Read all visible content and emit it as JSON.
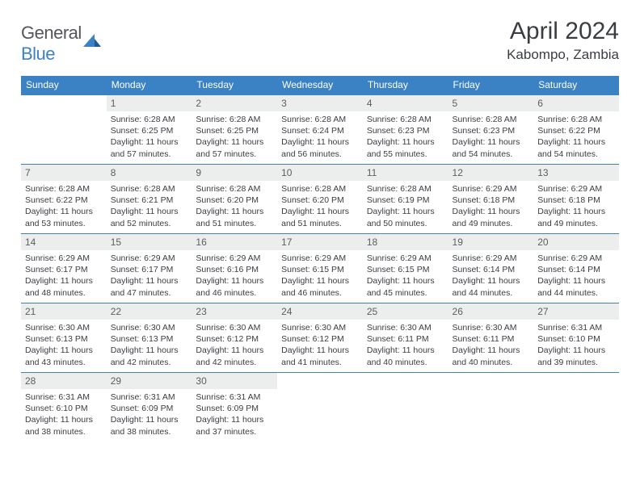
{
  "brand": {
    "part1": "General",
    "part2": "Blue"
  },
  "title": "April 2024",
  "location": "Kabompo, Zambia",
  "colors": {
    "brand_blue": "#3b82c4",
    "text_dark": "#3a3d42",
    "text_gray": "#54565a",
    "daynum_bg": "#eceded",
    "white": "#ffffff"
  },
  "calendar": {
    "day_headers": [
      "Sunday",
      "Monday",
      "Tuesday",
      "Wednesday",
      "Thursday",
      "Friday",
      "Saturday"
    ],
    "weeks": [
      [
        {
          "n": "",
          "sr": "",
          "ss": "",
          "dl": ""
        },
        {
          "n": "1",
          "sr": "Sunrise: 6:28 AM",
          "ss": "Sunset: 6:25 PM",
          "dl": "Daylight: 11 hours and 57 minutes."
        },
        {
          "n": "2",
          "sr": "Sunrise: 6:28 AM",
          "ss": "Sunset: 6:25 PM",
          "dl": "Daylight: 11 hours and 57 minutes."
        },
        {
          "n": "3",
          "sr": "Sunrise: 6:28 AM",
          "ss": "Sunset: 6:24 PM",
          "dl": "Daylight: 11 hours and 56 minutes."
        },
        {
          "n": "4",
          "sr": "Sunrise: 6:28 AM",
          "ss": "Sunset: 6:23 PM",
          "dl": "Daylight: 11 hours and 55 minutes."
        },
        {
          "n": "5",
          "sr": "Sunrise: 6:28 AM",
          "ss": "Sunset: 6:23 PM",
          "dl": "Daylight: 11 hours and 54 minutes."
        },
        {
          "n": "6",
          "sr": "Sunrise: 6:28 AM",
          "ss": "Sunset: 6:22 PM",
          "dl": "Daylight: 11 hours and 54 minutes."
        }
      ],
      [
        {
          "n": "7",
          "sr": "Sunrise: 6:28 AM",
          "ss": "Sunset: 6:22 PM",
          "dl": "Daylight: 11 hours and 53 minutes."
        },
        {
          "n": "8",
          "sr": "Sunrise: 6:28 AM",
          "ss": "Sunset: 6:21 PM",
          "dl": "Daylight: 11 hours and 52 minutes."
        },
        {
          "n": "9",
          "sr": "Sunrise: 6:28 AM",
          "ss": "Sunset: 6:20 PM",
          "dl": "Daylight: 11 hours and 51 minutes."
        },
        {
          "n": "10",
          "sr": "Sunrise: 6:28 AM",
          "ss": "Sunset: 6:20 PM",
          "dl": "Daylight: 11 hours and 51 minutes."
        },
        {
          "n": "11",
          "sr": "Sunrise: 6:28 AM",
          "ss": "Sunset: 6:19 PM",
          "dl": "Daylight: 11 hours and 50 minutes."
        },
        {
          "n": "12",
          "sr": "Sunrise: 6:29 AM",
          "ss": "Sunset: 6:18 PM",
          "dl": "Daylight: 11 hours and 49 minutes."
        },
        {
          "n": "13",
          "sr": "Sunrise: 6:29 AM",
          "ss": "Sunset: 6:18 PM",
          "dl": "Daylight: 11 hours and 49 minutes."
        }
      ],
      [
        {
          "n": "14",
          "sr": "Sunrise: 6:29 AM",
          "ss": "Sunset: 6:17 PM",
          "dl": "Daylight: 11 hours and 48 minutes."
        },
        {
          "n": "15",
          "sr": "Sunrise: 6:29 AM",
          "ss": "Sunset: 6:17 PM",
          "dl": "Daylight: 11 hours and 47 minutes."
        },
        {
          "n": "16",
          "sr": "Sunrise: 6:29 AM",
          "ss": "Sunset: 6:16 PM",
          "dl": "Daylight: 11 hours and 46 minutes."
        },
        {
          "n": "17",
          "sr": "Sunrise: 6:29 AM",
          "ss": "Sunset: 6:15 PM",
          "dl": "Daylight: 11 hours and 46 minutes."
        },
        {
          "n": "18",
          "sr": "Sunrise: 6:29 AM",
          "ss": "Sunset: 6:15 PM",
          "dl": "Daylight: 11 hours and 45 minutes."
        },
        {
          "n": "19",
          "sr": "Sunrise: 6:29 AM",
          "ss": "Sunset: 6:14 PM",
          "dl": "Daylight: 11 hours and 44 minutes."
        },
        {
          "n": "20",
          "sr": "Sunrise: 6:29 AM",
          "ss": "Sunset: 6:14 PM",
          "dl": "Daylight: 11 hours and 44 minutes."
        }
      ],
      [
        {
          "n": "21",
          "sr": "Sunrise: 6:30 AM",
          "ss": "Sunset: 6:13 PM",
          "dl": "Daylight: 11 hours and 43 minutes."
        },
        {
          "n": "22",
          "sr": "Sunrise: 6:30 AM",
          "ss": "Sunset: 6:13 PM",
          "dl": "Daylight: 11 hours and 42 minutes."
        },
        {
          "n": "23",
          "sr": "Sunrise: 6:30 AM",
          "ss": "Sunset: 6:12 PM",
          "dl": "Daylight: 11 hours and 42 minutes."
        },
        {
          "n": "24",
          "sr": "Sunrise: 6:30 AM",
          "ss": "Sunset: 6:12 PM",
          "dl": "Daylight: 11 hours and 41 minutes."
        },
        {
          "n": "25",
          "sr": "Sunrise: 6:30 AM",
          "ss": "Sunset: 6:11 PM",
          "dl": "Daylight: 11 hours and 40 minutes."
        },
        {
          "n": "26",
          "sr": "Sunrise: 6:30 AM",
          "ss": "Sunset: 6:11 PM",
          "dl": "Daylight: 11 hours and 40 minutes."
        },
        {
          "n": "27",
          "sr": "Sunrise: 6:31 AM",
          "ss": "Sunset: 6:10 PM",
          "dl": "Daylight: 11 hours and 39 minutes."
        }
      ],
      [
        {
          "n": "28",
          "sr": "Sunrise: 6:31 AM",
          "ss": "Sunset: 6:10 PM",
          "dl": "Daylight: 11 hours and 38 minutes."
        },
        {
          "n": "29",
          "sr": "Sunrise: 6:31 AM",
          "ss": "Sunset: 6:09 PM",
          "dl": "Daylight: 11 hours and 38 minutes."
        },
        {
          "n": "30",
          "sr": "Sunrise: 6:31 AM",
          "ss": "Sunset: 6:09 PM",
          "dl": "Daylight: 11 hours and 37 minutes."
        },
        {
          "n": "",
          "sr": "",
          "ss": "",
          "dl": ""
        },
        {
          "n": "",
          "sr": "",
          "ss": "",
          "dl": ""
        },
        {
          "n": "",
          "sr": "",
          "ss": "",
          "dl": ""
        },
        {
          "n": "",
          "sr": "",
          "ss": "",
          "dl": ""
        }
      ]
    ]
  }
}
